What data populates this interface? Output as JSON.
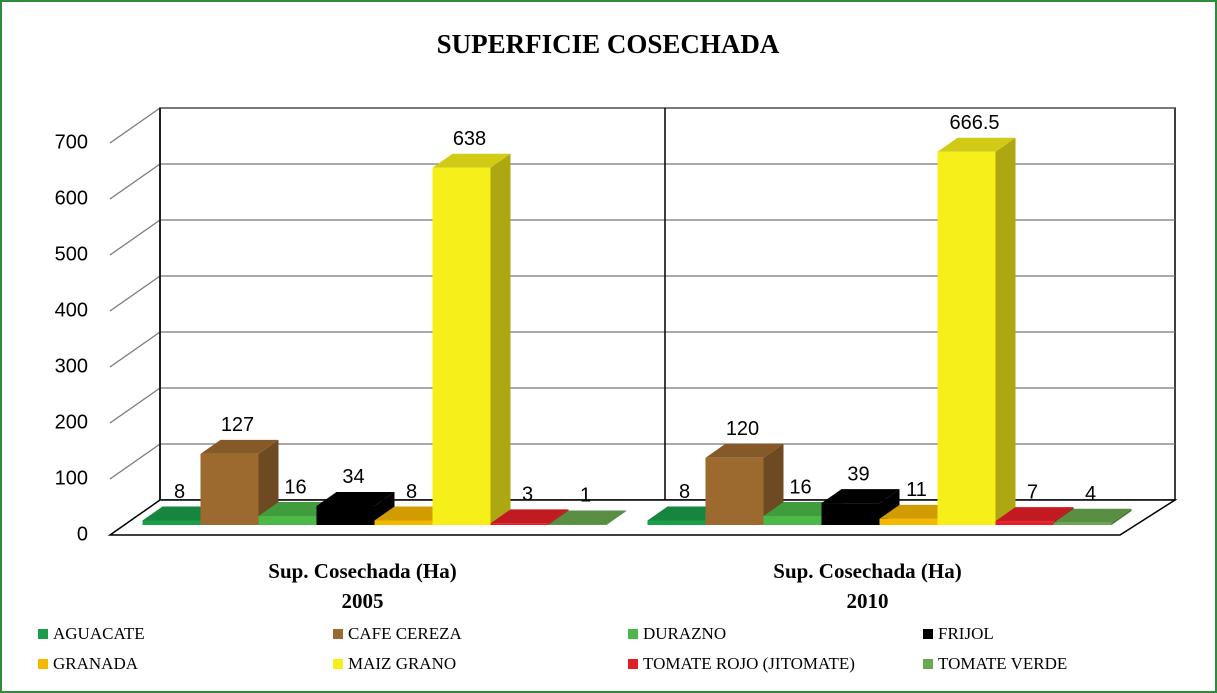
{
  "chart_data": {
    "type": "bar3d",
    "title": "SUPERFICIE COSECHADA",
    "categories": [
      [
        "Sup. Cosechada (Ha)",
        "2005"
      ],
      [
        "Sup. Cosechada (Ha)",
        "2010"
      ]
    ],
    "series": [
      {
        "name": "AGUACATE",
        "color": "#1a9e4a",
        "values": [
          8,
          8
        ]
      },
      {
        "name": "CAFE CEREZA",
        "color": "#9c6a2f",
        "values": [
          127,
          120
        ]
      },
      {
        "name": "DURAZNO",
        "color": "#4bb848",
        "values": [
          16,
          16
        ]
      },
      {
        "name": "FRIJOL",
        "color": "#000000",
        "values": [
          34,
          39
        ]
      },
      {
        "name": "GRANADA",
        "color": "#f5b800",
        "values": [
          8,
          11
        ]
      },
      {
        "name": "MAIZ GRANO",
        "color": "#f7ef1a",
        "values": [
          638,
          666.5
        ]
      },
      {
        "name": "TOMATE ROJO (JITOMATE)",
        "color": "#e41e26",
        "values": [
          3,
          7
        ]
      },
      {
        "name": "TOMATE VERDE",
        "color": "#6aa84f",
        "values": [
          1,
          4
        ]
      }
    ],
    "ylim": [
      0,
      700
    ],
    "yticks": [
      0,
      100,
      200,
      300,
      400,
      500,
      600,
      700
    ],
    "grid": true,
    "legend": "bottom"
  }
}
